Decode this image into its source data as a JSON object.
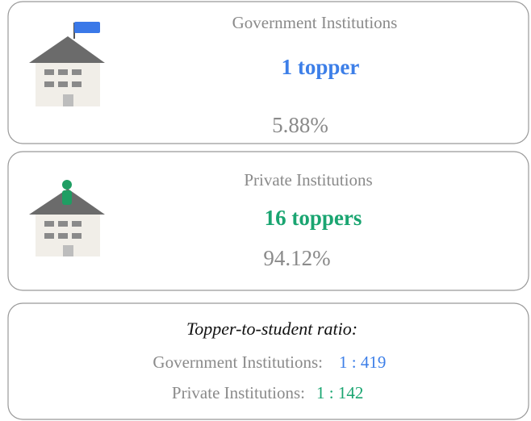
{
  "cards": [
    {
      "title": "Government Institutions",
      "count": "1 topper",
      "share": "5.88%"
    },
    {
      "title": "Private Institutions",
      "count": "16 toppers",
      "share": "94.12%"
    }
  ],
  "ratio": {
    "heading": "Topper-to-student ratio:",
    "rows": [
      {
        "label": "Government Institutions:",
        "value": "1 : 419"
      },
      {
        "label": "Private Institutions:",
        "value": "1 : 142"
      }
    ]
  }
}
